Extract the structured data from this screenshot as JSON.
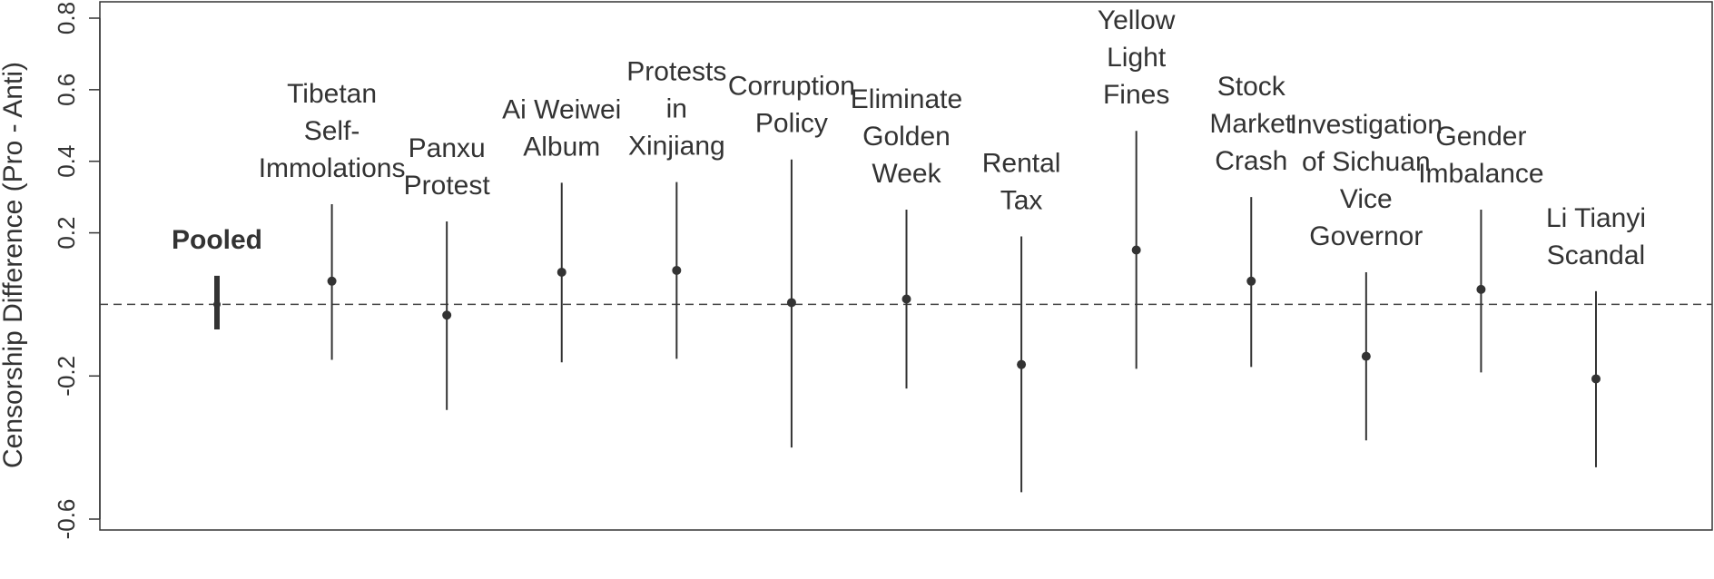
{
  "chart_data": {
    "type": "scatter",
    "ylabel": "Censorship Difference (Pro - Anti)",
    "ylim": [
      -0.6,
      0.8
    ],
    "yticks": [
      -0.6,
      -0.2,
      0.2,
      0.4,
      0.6,
      0.8
    ],
    "yticklabels": [
      "-0.6",
      "-0.2",
      "0.2",
      "0.4",
      "0.6",
      "0.8"
    ],
    "reference_line": 0,
    "points": [
      {
        "label": [
          "Pooled"
        ],
        "value": 0.0,
        "low": -0.07,
        "high": 0.08,
        "pooled": true
      },
      {
        "label": [
          "Tibetan",
          "Self-",
          "Immolations"
        ],
        "value": 0.065,
        "low": -0.155,
        "high": 0.28
      },
      {
        "label": [
          "Panxu",
          "Protest"
        ],
        "value": -0.03,
        "low": -0.295,
        "high": 0.232
      },
      {
        "label": [
          "Ai Weiwei",
          "Album"
        ],
        "value": 0.09,
        "low": -0.162,
        "high": 0.34
      },
      {
        "label": [
          "Protests",
          "in",
          "Xinjiang"
        ],
        "value": 0.095,
        "low": -0.152,
        "high": 0.342
      },
      {
        "label": [
          "Corruption",
          "Policy"
        ],
        "value": 0.005,
        "low": -0.4,
        "high": 0.405
      },
      {
        "label": [
          "Eliminate",
          "Golden",
          "Week"
        ],
        "value": 0.015,
        "low": -0.235,
        "high": 0.265
      },
      {
        "label": [
          "Rental",
          "Tax"
        ],
        "value": -0.168,
        "low": -0.525,
        "high": 0.19
      },
      {
        "label": [
          "Yellow",
          "Light",
          "Fines"
        ],
        "value": 0.152,
        "low": -0.18,
        "high": 0.485
      },
      {
        "label": [
          "Stock",
          "Market",
          "Crash"
        ],
        "value": 0.065,
        "low": -0.175,
        "high": 0.3
      },
      {
        "label": [
          "Investigation",
          "of Sichuan",
          "Vice",
          "Governor"
        ],
        "value": -0.145,
        "low": -0.38,
        "high": 0.09
      },
      {
        "label": [
          "Gender",
          "Imbalance"
        ],
        "value": 0.042,
        "low": -0.19,
        "high": 0.265
      },
      {
        "label": [
          "Li Tianyi",
          "Scandal"
        ],
        "value": -0.208,
        "low": -0.455,
        "high": 0.037
      }
    ]
  }
}
